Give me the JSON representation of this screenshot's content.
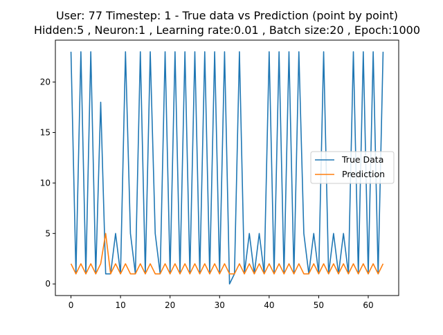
{
  "chart_data": {
    "type": "line",
    "title_line1": "User: 77 Timestep: 1 - True data vs Prediction (point by point)",
    "title_line2": "Hidden:5 , Neuron:1 , Learning rate:0.01 , Batch size:20 , Epoch:1000",
    "xlabel": "",
    "ylabel": "",
    "xlim": [
      -3.15,
      66.15
    ],
    "ylim": [
      -1.15,
      24.15
    ],
    "xticks": [
      0,
      10,
      20,
      30,
      40,
      50,
      60
    ],
    "yticks": [
      0,
      5,
      10,
      15,
      20
    ],
    "grid": false,
    "legend_position": "center-right",
    "series": [
      {
        "name": "True Data",
        "color": "#1f77b4",
        "x": [
          0,
          1,
          2,
          3,
          4,
          5,
          6,
          7,
          8,
          9,
          10,
          11,
          12,
          13,
          14,
          15,
          16,
          17,
          18,
          19,
          20,
          21,
          22,
          23,
          24,
          25,
          26,
          27,
          28,
          29,
          30,
          31,
          32,
          33,
          34,
          35,
          36,
          37,
          38,
          39,
          40,
          41,
          42,
          43,
          44,
          45,
          46,
          47,
          48,
          49,
          50,
          51,
          52,
          53,
          54,
          55,
          56,
          57,
          58,
          59,
          60,
          61,
          62,
          63
        ],
        "values": [
          23,
          1,
          23,
          1,
          23,
          1,
          18,
          1,
          1,
          5,
          1,
          23,
          5,
          1,
          23,
          1,
          23,
          5,
          1,
          23,
          1,
          23,
          1,
          23,
          1,
          23,
          1,
          23,
          1,
          23,
          1,
          23,
          0,
          1,
          23,
          1,
          5,
          1,
          5,
          1,
          23,
          1,
          23,
          1,
          23,
          1,
          23,
          5,
          1,
          5,
          1,
          23,
          1,
          5,
          1,
          5,
          1,
          23,
          1,
          23,
          1,
          23,
          1,
          23
        ]
      },
      {
        "name": "Prediction",
        "color": "#ff7f0e",
        "x": [
          0,
          1,
          2,
          3,
          4,
          5,
          6,
          7,
          8,
          9,
          10,
          11,
          12,
          13,
          14,
          15,
          16,
          17,
          18,
          19,
          20,
          21,
          22,
          23,
          24,
          25,
          26,
          27,
          28,
          29,
          30,
          31,
          32,
          33,
          34,
          35,
          36,
          37,
          38,
          39,
          40,
          41,
          42,
          43,
          44,
          45,
          46,
          47,
          48,
          49,
          50,
          51,
          52,
          53,
          54,
          55,
          56,
          57,
          58,
          59,
          60,
          61,
          62,
          63
        ],
        "values": [
          2,
          1,
          2,
          1,
          2,
          1,
          2,
          5,
          1,
          2,
          1,
          2,
          1,
          1,
          2,
          1,
          2,
          1,
          1,
          2,
          1,
          2,
          1,
          2,
          1,
          2,
          1,
          2,
          1,
          2,
          1,
          2,
          1,
          1,
          2,
          1,
          2,
          1,
          2,
          1,
          2,
          1,
          2,
          1,
          2,
          1,
          2,
          1,
          1,
          2,
          1,
          2,
          1,
          2,
          1,
          2,
          1,
          2,
          1,
          2,
          1,
          2,
          1,
          2
        ]
      }
    ]
  }
}
